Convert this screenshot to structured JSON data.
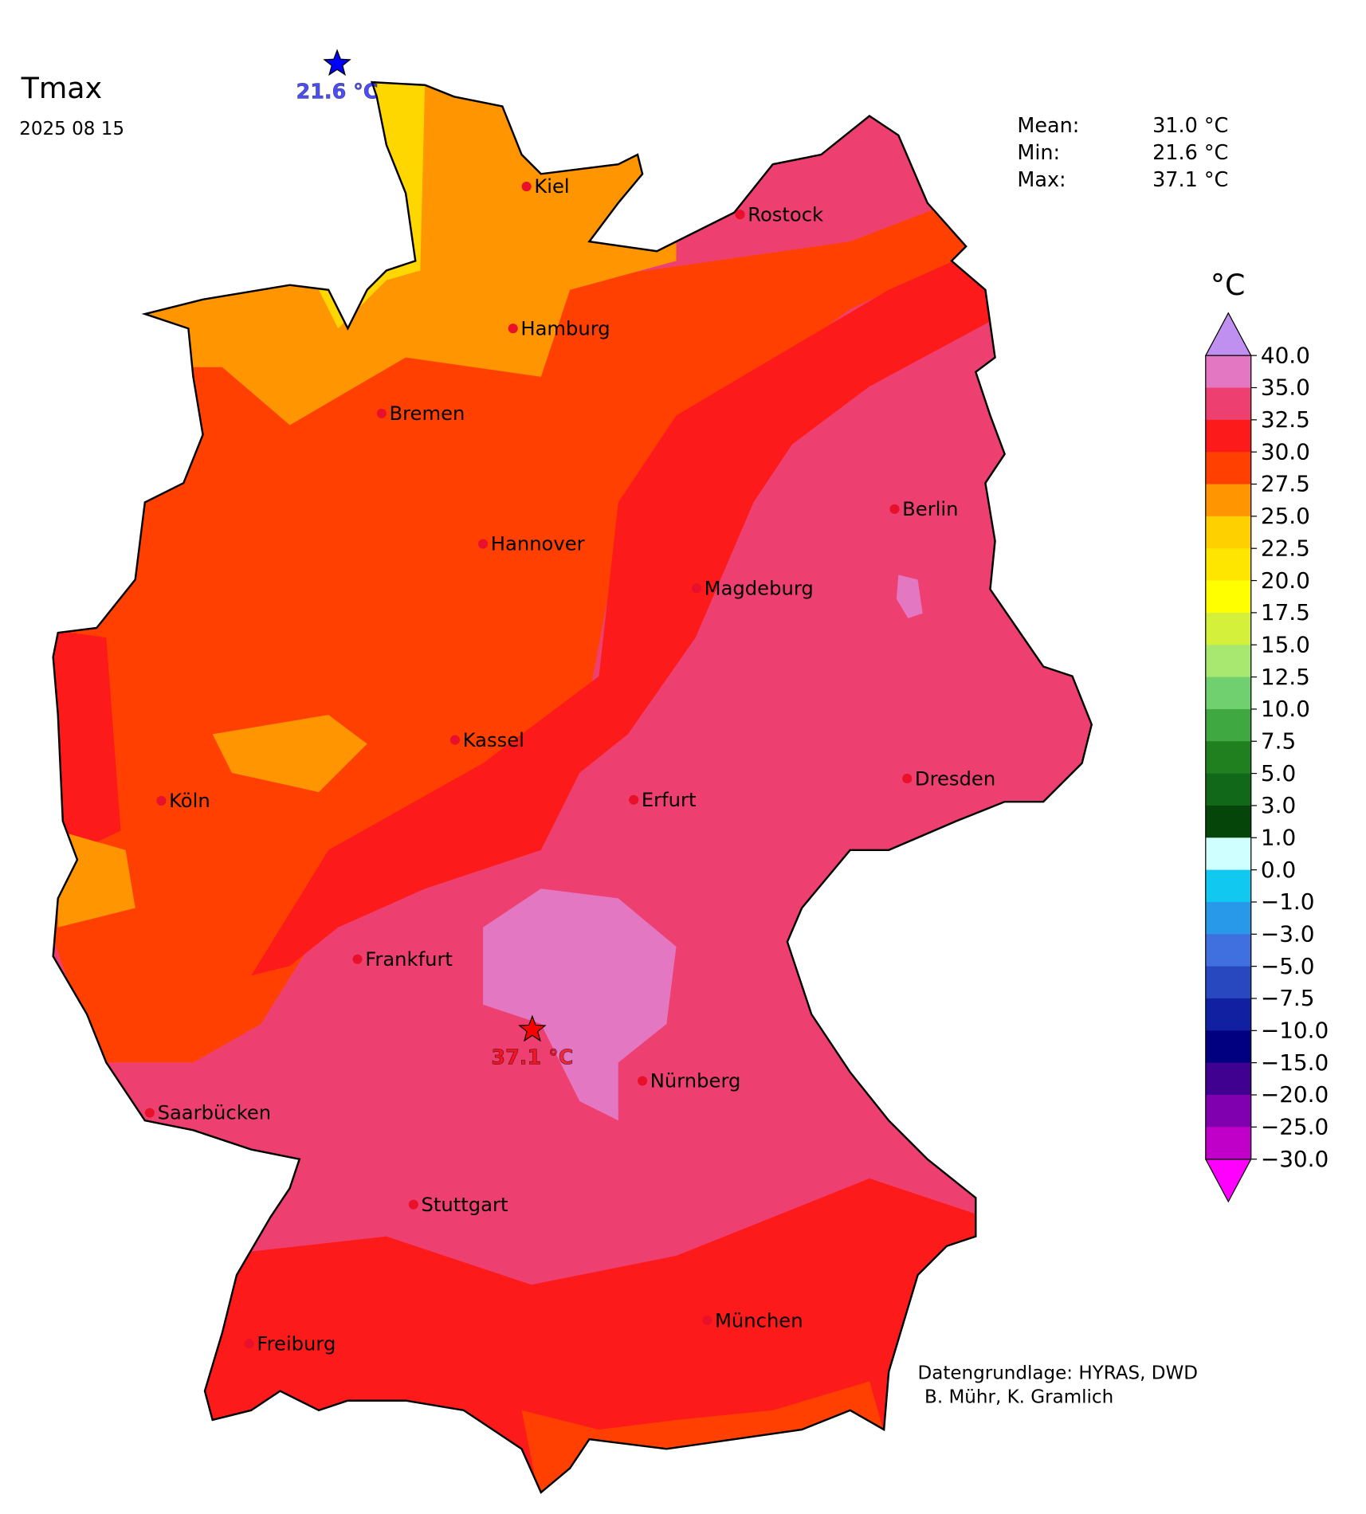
{
  "header": {
    "title": "Tmax",
    "date": "2025 08 15"
  },
  "stats": [
    {
      "label": "Mean:",
      "value": "31.0 °C"
    },
    {
      "label": "Min:",
      "value": "21.6 °C"
    },
    {
      "label": "Max:",
      "value": "37.1 °C"
    }
  ],
  "markers": {
    "min": {
      "label": "21.6 °C",
      "color": "#0000ff"
    },
    "max": {
      "label": "37.1 °C",
      "color": "#ff0000"
    }
  },
  "cities": [
    "Kiel",
    "Rostock",
    "Hamburg",
    "Bremen",
    "Berlin",
    "Hannover",
    "Magdeburg",
    "Kassel",
    "Köln",
    "Erfurt",
    "Dresden",
    "Frankfurt",
    "Nürnberg",
    "Saarbücken",
    "Stuttgart",
    "München",
    "Freiburg"
  ],
  "colorbar": {
    "unit": "°C",
    "ticks": [
      "40.0",
      "35.0",
      "32.5",
      "30.0",
      "27.5",
      "25.0",
      "22.5",
      "20.0",
      "17.5",
      "15.0",
      "12.5",
      "10.0",
      "7.5",
      "5.0",
      "3.0",
      "1.0",
      "0.0",
      "−1.0",
      "−3.0",
      "−5.0",
      "−7.5",
      "−10.0",
      "−15.0",
      "−20.0",
      "−25.0",
      "−30.0"
    ],
    "colors": [
      "#e377c2",
      "#ee4070",
      "#fc1a1a",
      "#ff4000",
      "#ff9500",
      "#ffd000",
      "#ffe600",
      "#ffff00",
      "#d4f03a",
      "#a8e870",
      "#70d070",
      "#40a840",
      "#208020",
      "#106818",
      "#05450a",
      "#d0ffff",
      "#10c8f0",
      "#2898e8",
      "#4070e0",
      "#2848c0",
      "#1020a0",
      "#000080",
      "#400090",
      "#8000b0",
      "#c000c8"
    ],
    "extend_colors": {
      "top": "#c090f0",
      "bottom": "#ff00ff"
    }
  },
  "credits": [
    "Datengrundlage: HYRAS, DWD",
    "B. Mühr, K. Gramlich"
  ]
}
